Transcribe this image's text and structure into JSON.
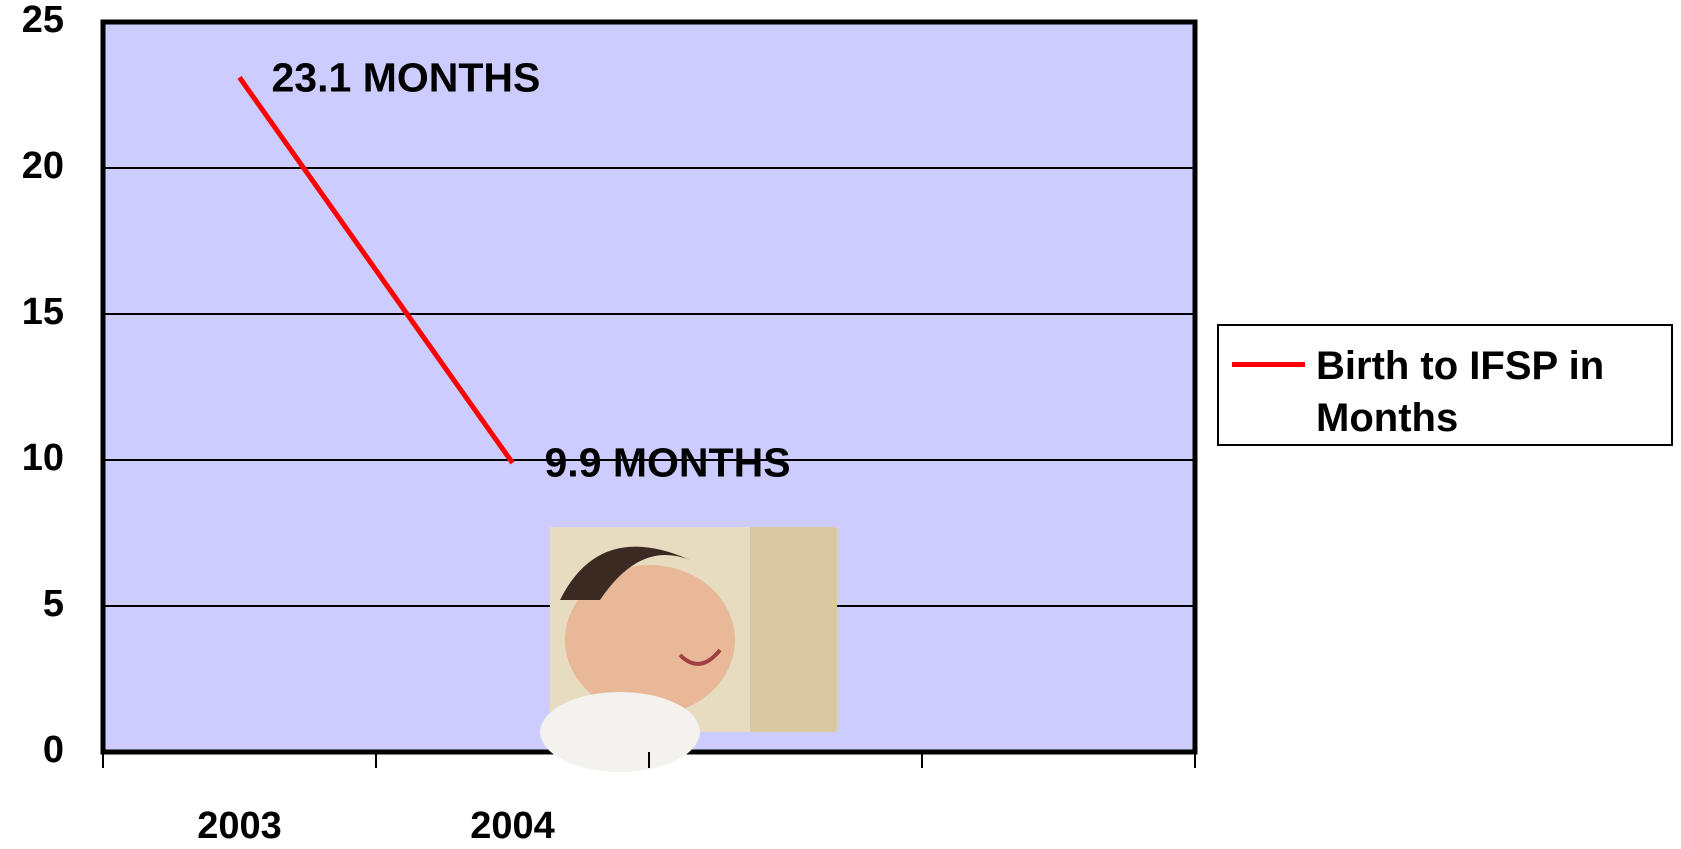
{
  "chart_data": {
    "type": "line",
    "categories": [
      "2003",
      "2004",
      null,
      null
    ],
    "series": [
      {
        "name": "Birth to IFSP in Months",
        "color": "#ff0000",
        "values": [
          23.1,
          9.9,
          null,
          null
        ],
        "value_labels": [
          "23.1 MONTHS",
          "9.9 MONTHS",
          null,
          null
        ]
      }
    ],
    "ylim": [
      0,
      25
    ],
    "yticks": [
      0,
      5,
      10,
      15,
      20,
      25
    ],
    "grid": true,
    "plot_background": "#ccccff",
    "legend": "right"
  }
}
